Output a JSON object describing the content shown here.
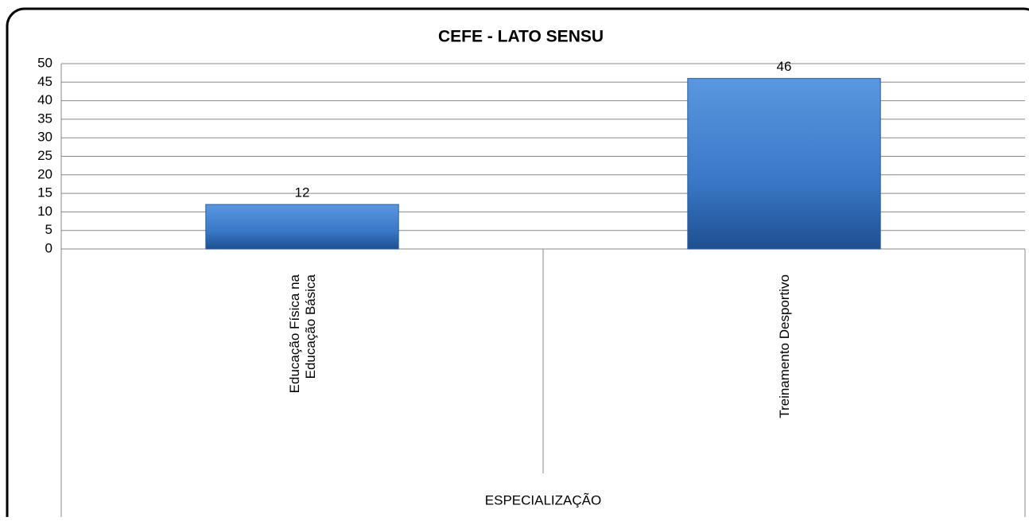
{
  "chart_data": {
    "type": "bar",
    "title": "CEFE - LATO SENSU",
    "categories": [
      "Educação Física na\nEducação Básica",
      "Treinamento  Desportivo"
    ],
    "values": [
      12,
      46
    ],
    "color": "#3a78c8",
    "ylim": [
      0,
      50
    ],
    "yticks": [
      0,
      5,
      10,
      15,
      20,
      25,
      30,
      35,
      40,
      45,
      50
    ],
    "grid": true,
    "x_label": "ESPECIALIZAÇÃO"
  }
}
